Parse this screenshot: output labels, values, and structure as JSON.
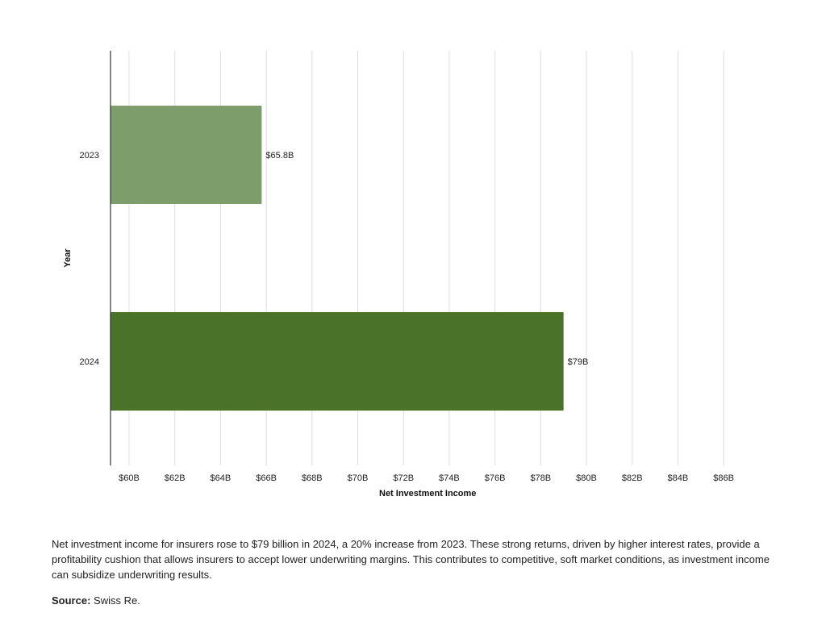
{
  "chart_data": {
    "type": "bar",
    "orientation": "horizontal",
    "categories": [
      "2023",
      "2024"
    ],
    "values": [
      65.8,
      79
    ],
    "data_labels": [
      "$65.8B",
      "$79B"
    ],
    "colors": [
      "#7d9d6a",
      "#4a7329"
    ],
    "xlabel": "Net Investment Income",
    "ylabel": "Year",
    "xlim": [
      59.2,
      87.5
    ],
    "xticks": [
      60,
      62,
      64,
      66,
      68,
      70,
      72,
      74,
      76,
      78,
      80,
      82,
      84,
      86
    ],
    "xtick_labels": [
      "$60B",
      "$62B",
      "$64B",
      "$66B",
      "$68B",
      "$70B",
      "$72B",
      "$74B",
      "$76B",
      "$78B",
      "$80B",
      "$82B",
      "$84B",
      "$86B"
    ],
    "grid": "vertical"
  },
  "description": "Net investment income for insurers rose to $79 billion in 2024, a 20% increase from 2023. These strong returns, driven by higher interest rates, provide a profitability cushion that allows insurers to accept lower underwriting margins. This contributes to competitive, soft market conditions, as investment income can subsidize underwriting results.",
  "source": {
    "label": "Source:",
    "text": " Swiss Re."
  }
}
